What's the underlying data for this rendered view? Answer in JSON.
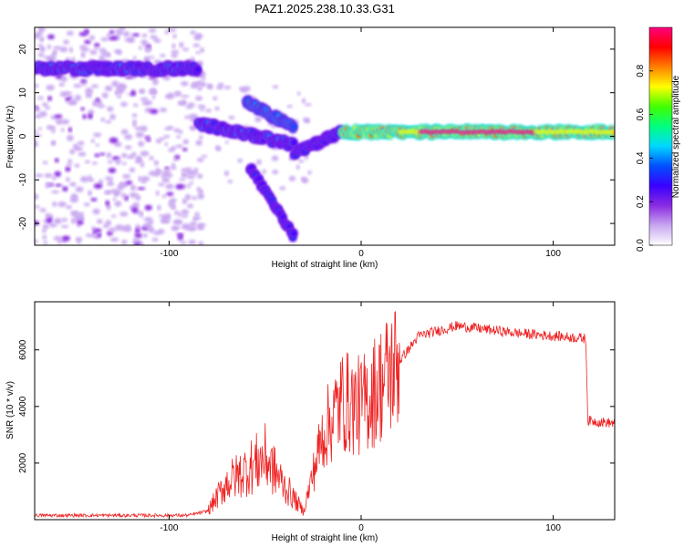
{
  "title": "PAZ1.2025.238.10.33.G31",
  "chart_data": [
    {
      "type": "heatmap",
      "xlabel": "Height of straight line (km)",
      "ylabel": "Frequency (Hz)",
      "xlim": [
        -170,
        132
      ],
      "ylim": [
        -25,
        25
      ],
      "xticks": [
        -100,
        0,
        100
      ],
      "yticks": [
        -20,
        -10,
        0,
        10,
        20
      ],
      "colorbar": {
        "label": "Normalized spectral amplitude",
        "range": [
          0.0,
          1.0
        ],
        "ticks": [
          0.0,
          0.2,
          0.4,
          0.6,
          0.8
        ],
        "tick_labels": [
          "0.0",
          "0.2",
          "0.4",
          "0.6",
          "0.8"
        ],
        "colormap": [
          "#ffffff",
          "#c8a6f0",
          "#8a2be2",
          "#3a00ff",
          "#0050ff",
          "#00d8ff",
          "#00ff80",
          "#40ff00",
          "#ffff00",
          "#ff8000",
          "#ff0000",
          "#ff0080"
        ]
      },
      "features": [
        {
          "x": [
            -170,
            -85
          ],
          "y": 15.5,
          "amp": 0.4
        },
        {
          "x": [
            -85,
            -35
          ],
          "y_start": 3,
          "y_end": -2,
          "amp": 0.4
        },
        {
          "x": [
            -60,
            -35
          ],
          "y_start": 8,
          "y_end": 2,
          "amp": 0.45
        },
        {
          "x": [
            -35,
            -10
          ],
          "y_start": -4,
          "y_end": 1,
          "amp": 0.35
        },
        {
          "x": [
            -58,
            -35
          ],
          "y_start": -7,
          "y_end": -23,
          "amp": 0.35
        },
        {
          "x": [
            -10,
            132
          ],
          "y": 1,
          "amp": 0.95
        }
      ]
    },
    {
      "type": "line",
      "xlabel": "Height of straight line (km)",
      "ylabel": "SNR (10 * v/v)",
      "xlim": [
        -170,
        132
      ],
      "ylim": [
        0,
        7700
      ],
      "xticks": [
        -100,
        0,
        100
      ],
      "yticks": [
        2000,
        4000,
        6000
      ],
      "color": "#ee2222",
      "series_envelope": [
        {
          "x": -170,
          "y": 150
        },
        {
          "x": -90,
          "y": 150
        },
        {
          "x": -80,
          "y": 300
        },
        {
          "x": -70,
          "y": 1300
        },
        {
          "x": -50,
          "y": 2200
        },
        {
          "x": -40,
          "y": 1200
        },
        {
          "x": -30,
          "y": 300
        },
        {
          "x": -20,
          "y": 3000
        },
        {
          "x": -10,
          "y": 4200
        },
        {
          "x": 0,
          "y": 4000
        },
        {
          "x": 10,
          "y": 4800
        },
        {
          "x": 20,
          "y": 5600
        },
        {
          "x": 30,
          "y": 6500
        },
        {
          "x": 50,
          "y": 6850
        },
        {
          "x": 80,
          "y": 6600
        },
        {
          "x": 117,
          "y": 6400
        },
        {
          "x": 118,
          "y": 3500
        },
        {
          "x": 132,
          "y": 3400
        }
      ]
    }
  ]
}
